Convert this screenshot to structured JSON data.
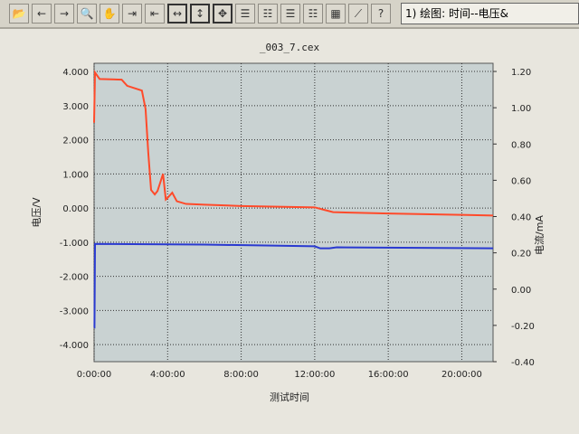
{
  "toolbar": {
    "buttons": [
      {
        "icon": "open-folder-icon"
      },
      {
        "icon": "arrow-left-icon"
      },
      {
        "icon": "arrow-right-icon"
      },
      {
        "icon": "zoom-box-icon"
      },
      {
        "icon": "hand-pan-icon"
      },
      {
        "icon": "compress-x-icon"
      },
      {
        "icon": "expand-x-icon"
      },
      {
        "icon": "fit-x-icon"
      },
      {
        "icon": "fit-y-icon"
      },
      {
        "icon": "fit-all-icon"
      },
      {
        "icon": "tree-icon"
      },
      {
        "icon": "tree-detail-icon"
      },
      {
        "icon": "list-icon"
      },
      {
        "icon": "list-detail-icon"
      },
      {
        "icon": "table-icon"
      },
      {
        "icon": "curve-icon"
      },
      {
        "icon": "help-icon"
      }
    ],
    "plot_select": "1) 绘图: 时间--电压&"
  },
  "chart_data": {
    "type": "line",
    "title": "_003_7.cex",
    "xlabel": "测试时间",
    "ylabel_left": "电压/V",
    "ylabel_right": "电流/mA",
    "x_ticks": [
      "0:00:00",
      "4:00:00",
      "8:00:00",
      "12:00:00",
      "16:00:00",
      "20:00:00"
    ],
    "y_left_ticks": [
      "4.000",
      "3.000",
      "2.000",
      "1.000",
      "0.000",
      "-1.000",
      "-2.000",
      "-3.000",
      "-4.000"
    ],
    "y_right_ticks": [
      "1.20",
      "1.00",
      "0.80",
      "0.60",
      "0.40",
      "0.20",
      "0.00",
      "-0.20",
      "-0.40"
    ],
    "xlim_hours": [
      0,
      21.7
    ],
    "ylim_left": [
      -4.5,
      4.24
    ],
    "ylim_right": [
      -0.4,
      1.245
    ],
    "grid": true,
    "colors": {
      "voltage": "#ff4a2a",
      "current": "#2a3ad0",
      "plot_bg": "#c9d2d2"
    },
    "series": [
      {
        "axis": "left",
        "color": "#ff4a2a",
        "x_hours": [
          0,
          0.05,
          0.3,
          1.5,
          1.8,
          2.6,
          2.8,
          2.95,
          3.1,
          3.3,
          3.45,
          3.6,
          3.75,
          3.9,
          4.0,
          4.25,
          4.5,
          5,
          6,
          8,
          10,
          12,
          12.5,
          13,
          16,
          20,
          21.7
        ],
        "y": [
          2.5,
          3.97,
          3.78,
          3.76,
          3.58,
          3.44,
          2.9,
          1.6,
          0.53,
          0.4,
          0.5,
          0.75,
          1.0,
          0.25,
          0.3,
          0.45,
          0.2,
          0.12,
          0.1,
          0.06,
          0.04,
          0.02,
          -0.05,
          -0.12,
          -0.16,
          -0.2,
          -0.22
        ]
      },
      {
        "axis": "left",
        "color": "#2a3ad0",
        "x_hours": [
          0,
          0.02,
          0.05,
          6,
          12,
          12.3,
          12.8,
          13.2,
          21.7
        ],
        "y": [
          -3.5,
          -3.5,
          -1.05,
          -1.07,
          -1.12,
          -1.18,
          -1.18,
          -1.15,
          -1.18
        ]
      }
    ]
  }
}
